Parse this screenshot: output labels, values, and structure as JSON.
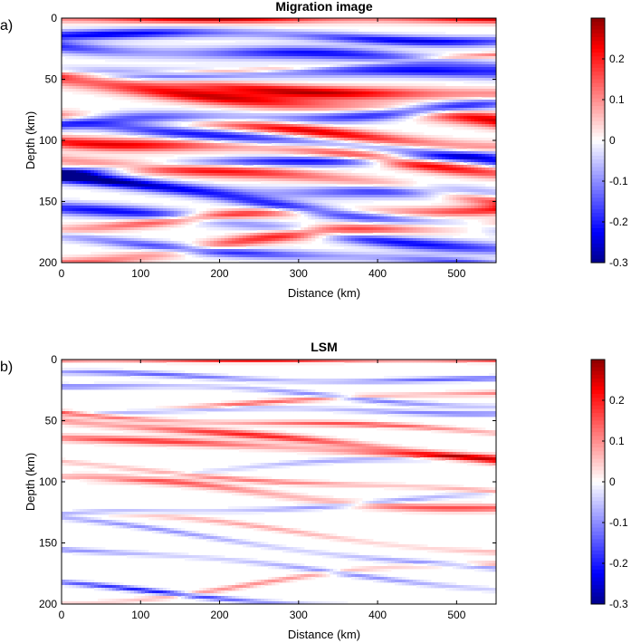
{
  "colors": {
    "min_color": "#00008b",
    "mid_color": "#ffffff",
    "max_color": "#8b0000",
    "axis_color": "#000000"
  },
  "chart_data": [
    {
      "panel_label": "a)",
      "type": "heatmap",
      "title": "Migration image",
      "xlabel": "Distance (km)",
      "ylabel": "Depth (km)",
      "xlim": [
        0,
        550
      ],
      "ylim": [
        0,
        200
      ],
      "y_reversed": true,
      "xticks": [
        0,
        100,
        200,
        300,
        400,
        500
      ],
      "yticks": [
        0,
        50,
        100,
        150,
        200
      ],
      "colorbar": {
        "min": -0.3,
        "max": 0.3,
        "ticks": [
          0.2,
          0.1,
          0,
          -0.1,
          -0.2,
          -0.3
        ],
        "tick_labels": [
          "0.2",
          "0.1",
          "0",
          "-0.1",
          "-0.2",
          "-0.3"
        ],
        "colormap": "blue-white-red"
      },
      "layers": [
        {
          "depth": 0,
          "amp": 0.28,
          "thick": 4,
          "dip": 0,
          "curv": 0
        },
        {
          "depth": 15,
          "amp": -0.24,
          "thick": 4,
          "dip": 0.003,
          "curv": 0.3
        },
        {
          "depth": 30,
          "amp": -0.22,
          "thick": 5,
          "dip": 0.01,
          "curv": -0.4
        },
        {
          "depth": 40,
          "amp": 0.12,
          "thick": 2,
          "dip": -0.01,
          "curv": 0.2
        },
        {
          "depth": 45,
          "amp": -0.22,
          "thick": 5,
          "dip": 0.0,
          "curv": 0.3
        },
        {
          "depth": 57,
          "amp": 0.27,
          "thick": 5,
          "dip": 0.01,
          "curv": -0.3
        },
        {
          "depth": 68,
          "amp": 0.26,
          "thick": 6,
          "dip": 0.02,
          "curv": -0.2
        },
        {
          "depth": 80,
          "amp": -0.25,
          "thick": 5,
          "dip": -0.01,
          "curv": 0.4
        },
        {
          "depth": 92,
          "amp": 0.25,
          "thick": 5,
          "dip": 0.015,
          "curv": -0.3
        },
        {
          "depth": 100,
          "amp": -0.22,
          "thick": 5,
          "dip": 0.02,
          "curv": 0.2
        },
        {
          "depth": 110,
          "amp": 0.24,
          "thick": 5,
          "dip": 0.015,
          "curv": 0.5
        },
        {
          "depth": 118,
          "amp": -0.22,
          "thick": 4,
          "dip": -0.01,
          "curv": 0.3
        },
        {
          "depth": 130,
          "amp": 0.22,
          "thick": 5,
          "dip": 0.02,
          "curv": -0.4
        },
        {
          "depth": 140,
          "amp": -0.2,
          "thick": 5,
          "dip": 0.01,
          "curv": 0.5
        },
        {
          "depth": 152,
          "amp": -0.22,
          "thick": 5,
          "dip": 0.025,
          "curv": -0.3
        },
        {
          "depth": 162,
          "amp": 0.2,
          "thick": 4,
          "dip": -0.01,
          "curv": 0.4
        },
        {
          "depth": 172,
          "amp": -0.22,
          "thick": 5,
          "dip": 0.02,
          "curv": 0.3
        },
        {
          "depth": 182,
          "amp": 0.22,
          "thick": 5,
          "dip": -0.02,
          "curv": -0.5
        },
        {
          "depth": 192,
          "amp": -0.2,
          "thick": 4,
          "dip": 0.015,
          "curv": 0.3
        }
      ]
    },
    {
      "panel_label": "b)",
      "type": "heatmap",
      "title": "LSM",
      "xlabel": "Distance (km)",
      "ylabel": "Depth (km)",
      "xlim": [
        0,
        550
      ],
      "ylim": [
        0,
        200
      ],
      "y_reversed": true,
      "xticks": [
        0,
        100,
        200,
        300,
        400,
        500
      ],
      "yticks": [
        0,
        50,
        100,
        150,
        200
      ],
      "colorbar": {
        "min": -0.3,
        "max": 0.3,
        "ticks": [
          0.2,
          0.1,
          0,
          -0.1,
          -0.2,
          -0.3
        ],
        "tick_labels": [
          "0.2",
          "0.1",
          "0",
          "-0.1",
          "-0.2",
          "-0.3"
        ],
        "colormap": "blue-white-red"
      },
      "layers": [
        {
          "depth": 0,
          "amp": 0.26,
          "thick": 2,
          "dip": 0,
          "curv": 0
        },
        {
          "depth": 15,
          "amp": -0.14,
          "thick": 2,
          "dip": 0.003,
          "curv": 0.3
        },
        {
          "depth": 28,
          "amp": -0.12,
          "thick": 2,
          "dip": 0.01,
          "curv": -0.4
        },
        {
          "depth": 35,
          "amp": 0.14,
          "thick": 2,
          "dip": -0.01,
          "curv": 0.2
        },
        {
          "depth": 42,
          "amp": -0.12,
          "thick": 2,
          "dip": 0.0,
          "curv": 0.3
        },
        {
          "depth": 52,
          "amp": 0.16,
          "thick": 2,
          "dip": 0.01,
          "curv": -0.3
        },
        {
          "depth": 65,
          "amp": 0.2,
          "thick": 3,
          "dip": 0.02,
          "curv": -0.2
        },
        {
          "depth": 72,
          "amp": 0.18,
          "thick": 3,
          "dip": 0.01,
          "curv": -0.1
        },
        {
          "depth": 88,
          "amp": -0.08,
          "thick": 2,
          "dip": -0.01,
          "curv": 0.4
        },
        {
          "depth": 98,
          "amp": 0.12,
          "thick": 2,
          "dip": 0.015,
          "curv": -0.3
        },
        {
          "depth": 110,
          "amp": 0.16,
          "thick": 3,
          "dip": 0.015,
          "curv": 0.5
        },
        {
          "depth": 120,
          "amp": -0.1,
          "thick": 2,
          "dip": -0.01,
          "curv": 0.3
        },
        {
          "depth": 140,
          "amp": 0.08,
          "thick": 2,
          "dip": 0.02,
          "curv": -0.4
        },
        {
          "depth": 152,
          "amp": -0.1,
          "thick": 2,
          "dip": 0.025,
          "curv": -0.3
        },
        {
          "depth": 170,
          "amp": -0.1,
          "thick": 2,
          "dip": 0.02,
          "curv": 0.3
        },
        {
          "depth": 182,
          "amp": 0.1,
          "thick": 2,
          "dip": -0.02,
          "curv": -0.5
        },
        {
          "depth": 197,
          "amp": -0.2,
          "thick": 2,
          "dip": 0.015,
          "curv": 0.3
        }
      ]
    }
  ]
}
